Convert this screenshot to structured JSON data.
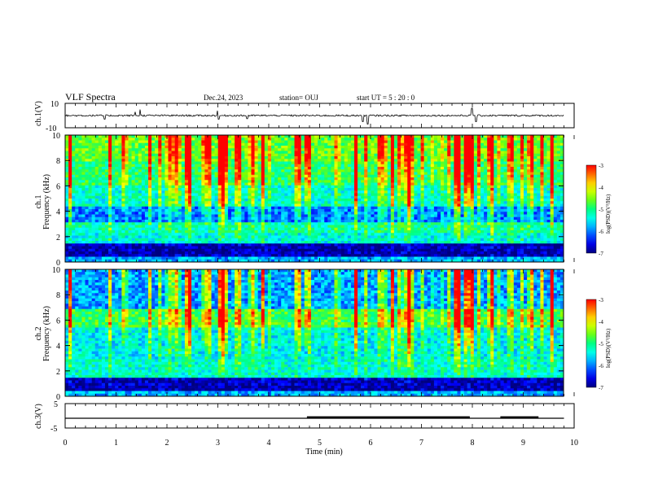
{
  "header": {
    "title": "VLF Spectra",
    "date": "Dec.24, 2023",
    "station": "station= OUJ",
    "start": "start  UT =   5  : 20 : 0"
  },
  "colors": {
    "colormap": [
      "#000080",
      "#0000ff",
      "#0080ff",
      "#00ffff",
      "#00ff80",
      "#80ff00",
      "#ffff00",
      "#ff8000",
      "#ff0000",
      "#ffffff"
    ]
  },
  "chart_data": [
    {
      "type": "line",
      "name": "ch1-waveform",
      "ylabel": "ch.1(V)",
      "ylim": [
        -10,
        10
      ],
      "ytick_labels": [
        "10",
        "-10"
      ],
      "baseline": 0,
      "spikes": [
        {
          "t": 0.78,
          "v": -3
        },
        {
          "t": 1.38,
          "v": 3
        },
        {
          "t": 1.47,
          "v": 5
        },
        {
          "t": 3.0,
          "v": 4
        },
        {
          "t": 3.02,
          "v": -3
        },
        {
          "t": 3.58,
          "v": -2.5
        },
        {
          "t": 5.85,
          "v": -5
        },
        {
          "t": 5.95,
          "v": -7
        },
        {
          "t": 8.0,
          "v": 6
        },
        {
          "t": 8.08,
          "v": -5
        }
      ]
    },
    {
      "type": "heatmap",
      "name": "ch1-spectrogram",
      "ylabel": "ch.1\nFrequency  (kHz)",
      "ylim": [
        0,
        10
      ],
      "yticks": [
        0,
        2,
        4,
        6,
        8,
        10
      ],
      "xlim": [
        0,
        10
      ],
      "colorbar": {
        "label": "log(PSD)(V²/Hz)",
        "range": [
          -7,
          -3
        ],
        "tick_labels": [
          "-3",
          "-4",
          "-5",
          "-6",
          "-7"
        ]
      },
      "bands": [
        {
          "f": [
            0.0,
            0.5
          ],
          "level": 0.3
        },
        {
          "f": [
            0.5,
            1.5
          ],
          "level": 0.05
        },
        {
          "f": [
            1.5,
            2.2
          ],
          "level": 0.4
        },
        {
          "f": [
            2.2,
            3.2
          ],
          "level": 0.45
        },
        {
          "f": [
            3.2,
            4.4
          ],
          "level": 0.25
        },
        {
          "f": [
            4.4,
            6.0
          ],
          "level": 0.42
        },
        {
          "f": [
            6.0,
            8.0
          ],
          "level": 0.52
        },
        {
          "f": [
            8.0,
            10.0
          ],
          "level": 0.6
        }
      ]
    },
    {
      "type": "heatmap",
      "name": "ch2-spectrogram",
      "ylabel": "ch.2\nFrequency  (kHz)",
      "ylim": [
        0,
        10
      ],
      "yticks": [
        0,
        2,
        4,
        6,
        8,
        10
      ],
      "xlim": [
        0,
        10
      ],
      "colorbar": {
        "label": "log(PSD)(V²/Hz)",
        "range": [
          -7,
          -3
        ],
        "tick_labels": [
          "-3",
          "-4",
          "-5",
          "-6",
          "-7"
        ]
      },
      "bands": [
        {
          "f": [
            0.0,
            0.5
          ],
          "level": 0.3
        },
        {
          "f": [
            0.5,
            1.5
          ],
          "level": 0.05
        },
        {
          "f": [
            1.5,
            3.0
          ],
          "level": 0.42
        },
        {
          "f": [
            3.0,
            5.5
          ],
          "level": 0.38
        },
        {
          "f": [
            5.5,
            6.8
          ],
          "level": 0.55
        },
        {
          "f": [
            6.8,
            10.0
          ],
          "level": 0.28
        }
      ]
    },
    {
      "type": "line",
      "name": "ch3-level",
      "ylabel": "ch.3(V)",
      "ylim": [
        -5,
        5
      ],
      "ytick_labels": [
        "5",
        "-5"
      ],
      "baseline": -1,
      "raised_segments": [
        [
          4.75,
          7.95
        ],
        [
          8.55,
          9.3
        ]
      ],
      "raised_offset": -0.8
    }
  ],
  "xaxis": {
    "label": "Time  (min)",
    "ticks": [
      "0",
      "1",
      "2",
      "3",
      "4",
      "5",
      "6",
      "7",
      "8",
      "9",
      "10"
    ],
    "xlim": [
      0,
      10
    ]
  }
}
